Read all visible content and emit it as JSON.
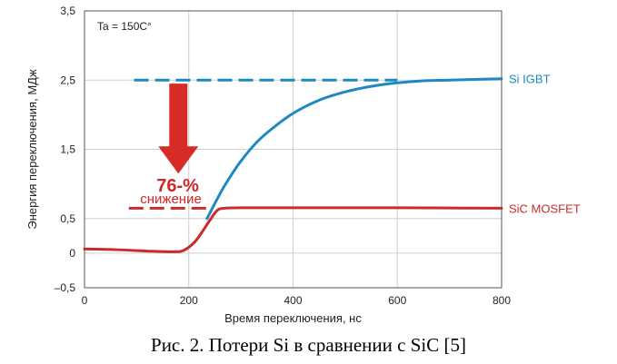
{
  "chart_data": {
    "type": "line",
    "xlabel": "Время переключения, нс",
    "ylabel": "Энергия переключения, МДж",
    "xlim": [
      0,
      800
    ],
    "ylim": [
      -0.5,
      3.5
    ],
    "x_ticks": [
      "0",
      "200",
      "400",
      "600",
      "800"
    ],
    "y_ticks": [
      "3,5",
      "2,5",
      "1,5",
      "0,5",
      "0",
      "–0,5"
    ],
    "y_tick_values": [
      3.5,
      2.5,
      1.5,
      0.5,
      0,
      -0.5
    ],
    "grid": true,
    "series": [
      {
        "name": "Si IGBT",
        "color": "#1e88c0",
        "x": [
          235,
          260,
          280,
          300,
          330,
          360,
          400,
          450,
          500,
          550,
          600,
          650,
          700,
          800
        ],
        "y": [
          0.5,
          0.86,
          1.11,
          1.33,
          1.6,
          1.8,
          2.02,
          2.21,
          2.33,
          2.41,
          2.46,
          2.49,
          2.5,
          2.52
        ]
      },
      {
        "name": "SiC MOSFET",
        "color": "#cc2a2a",
        "x": [
          0,
          60,
          120,
          170,
          190,
          210,
          225,
          240,
          255,
          270,
          300,
          400,
          500,
          600,
          700,
          800
        ],
        "y": [
          0.06,
          0.05,
          0.03,
          0.02,
          0.04,
          0.15,
          0.3,
          0.47,
          0.62,
          0.65,
          0.655,
          0.655,
          0.655,
          0.655,
          0.652,
          0.65
        ]
      }
    ],
    "reference_lines": [
      {
        "series": "Si IGBT",
        "y": 2.5,
        "x_range": [
          95,
          600
        ],
        "style": "dashed",
        "color": "#1e88c0"
      },
      {
        "series": "SiC MOSFET",
        "y": 0.65,
        "x_range": [
          85,
          240
        ],
        "style": "dashed",
        "color": "#cc2a2a"
      }
    ],
    "annotations": {
      "condition": "Ta = 150C°",
      "reduction_value": "76-%",
      "reduction_text": "снижение",
      "arrow_color": "#d62b27",
      "arrow_x": 180,
      "arrow_from": 2.45,
      "arrow_to": 1.15
    }
  },
  "caption": "Рис. 2. Потери Si в сравнении с SiC [5]"
}
